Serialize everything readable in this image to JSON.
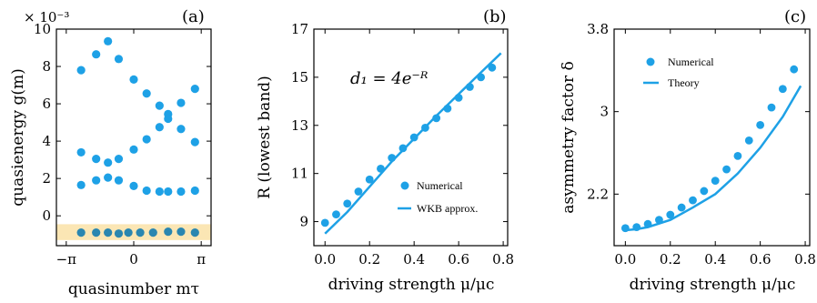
{
  "colors": {
    "marker": "#1ea1e6",
    "band": "#fbe6b4",
    "band_points": "#2a86b0"
  },
  "chart_data": [
    {
      "type": "scatter",
      "panel": "(a)",
      "xlabel": "quasinumber mτ",
      "ylabel": "quasienergy g(m)",
      "y_scale_note": "× 10⁻³",
      "xlim": [
        -3.6,
        3.6
      ],
      "ylim": [
        -1.6,
        10
      ],
      "xticks": [
        -3.14159,
        0,
        3.14159
      ],
      "xtick_labels": [
        "−π",
        "0",
        "π"
      ],
      "yticks": [
        0,
        2,
        4,
        6,
        8,
        10
      ],
      "shaded_band": [
        -1.3,
        -0.45
      ],
      "series": [
        {
          "x": [
            -2.45,
            -1.75,
            -1.2,
            -0.7,
            0,
            0.6,
            1.2,
            1.6,
            2.2,
            2.85
          ],
          "y": [
            7.8,
            8.65,
            9.35,
            8.4,
            7.3,
            6.55,
            5.9,
            5.45,
            6.05,
            6.8
          ]
        },
        {
          "x": [
            -2.45,
            -1.75,
            -1.2,
            -0.7,
            0,
            0.6,
            1.2,
            1.6,
            2.2,
            2.85
          ],
          "y": [
            3.4,
            3.05,
            2.85,
            3.05,
            3.55,
            4.1,
            4.75,
            5.2,
            4.65,
            3.95
          ]
        },
        {
          "x": [
            -2.45,
            -1.75,
            -1.2,
            -0.7,
            0,
            0.6,
            1.2,
            1.6,
            2.2,
            2.85
          ],
          "y": [
            1.65,
            1.9,
            2.05,
            1.9,
            1.6,
            1.35,
            1.3,
            1.3,
            1.3,
            1.35
          ]
        },
        {
          "x": [
            -2.45,
            -1.75,
            -1.2,
            -0.7,
            -0.25,
            0.3,
            0.9,
            1.6,
            2.2,
            2.85
          ],
          "y": [
            -0.9,
            -0.9,
            -0.9,
            -0.95,
            -0.9,
            -0.9,
            -0.9,
            -0.85,
            -0.85,
            -0.9
          ],
          "in_band": true
        }
      ]
    },
    {
      "type": "line+scatter",
      "panel": "(b)",
      "xlabel": "driving strength μ/μc",
      "ylabel": "R (lowest band)",
      "annotation": "d₁ = 4e⁻ᴿ",
      "xlim": [
        -0.05,
        0.82
      ],
      "ylim": [
        8,
        17
      ],
      "xticks": [
        0.0,
        0.2,
        0.4,
        0.6,
        0.8
      ],
      "xtick_labels": [
        "0.0",
        "0.2",
        "0.4",
        "0.6",
        "0.8"
      ],
      "yticks": [
        9,
        11,
        13,
        15,
        17
      ],
      "legend": [
        "Numerical",
        "WKB approx."
      ],
      "numerical": {
        "x": [
          0.0,
          0.05,
          0.1,
          0.15,
          0.2,
          0.25,
          0.3,
          0.35,
          0.4,
          0.45,
          0.5,
          0.55,
          0.6,
          0.65,
          0.7,
          0.75
        ],
        "y": [
          8.95,
          9.3,
          9.75,
          10.25,
          10.75,
          11.2,
          11.65,
          12.05,
          12.5,
          12.9,
          13.3,
          13.7,
          14.15,
          14.6,
          15.0,
          15.4
        ]
      },
      "theory": {
        "x": [
          0.0,
          0.05,
          0.1,
          0.2,
          0.3,
          0.4,
          0.5,
          0.6,
          0.7,
          0.79
        ],
        "y": [
          8.5,
          8.95,
          9.4,
          10.45,
          11.5,
          12.45,
          13.4,
          14.3,
          15.2,
          16.0
        ]
      }
    },
    {
      "type": "line+scatter",
      "panel": "(c)",
      "xlabel": "driving strength μ/μc",
      "ylabel": "asymmetry factor δ",
      "xlim": [
        -0.05,
        0.82
      ],
      "ylim": [
        1.7,
        3.8
      ],
      "xticks": [
        0.0,
        0.2,
        0.4,
        0.6,
        0.8
      ],
      "xtick_labels": [
        "0.0",
        "0.2",
        "0.4",
        "0.6",
        "0.8"
      ],
      "yticks": [
        2.2,
        3.0,
        3.8
      ],
      "legend": [
        "Numerical",
        "Theory"
      ],
      "numerical": {
        "x": [
          0.0,
          0.05,
          0.1,
          0.15,
          0.2,
          0.25,
          0.3,
          0.35,
          0.4,
          0.45,
          0.5,
          0.55,
          0.6,
          0.65,
          0.7,
          0.75
        ],
        "y": [
          1.87,
          1.88,
          1.91,
          1.95,
          2.0,
          2.07,
          2.14,
          2.23,
          2.33,
          2.44,
          2.57,
          2.72,
          2.87,
          3.04,
          3.22,
          3.41
        ]
      },
      "theory": {
        "x": [
          0.0,
          0.05,
          0.1,
          0.2,
          0.3,
          0.4,
          0.5,
          0.6,
          0.7,
          0.78
        ],
        "y": [
          1.85,
          1.86,
          1.88,
          1.95,
          2.07,
          2.2,
          2.4,
          2.65,
          2.95,
          3.25
        ]
      }
    }
  ]
}
